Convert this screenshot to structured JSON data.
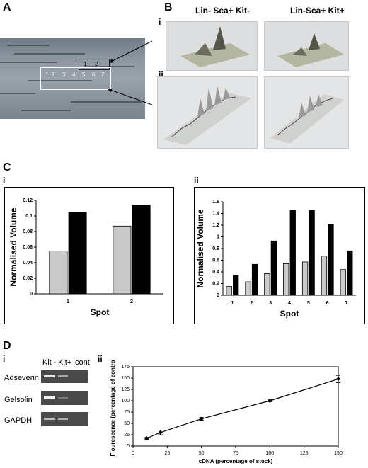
{
  "panels": {
    "A": {
      "letter": "A",
      "spots_small": [
        "1",
        "2"
      ],
      "spots_large": [
        "1",
        "2",
        "3",
        "4",
        "5",
        "6",
        "7"
      ]
    },
    "B": {
      "letter": "B",
      "sub_i": "i",
      "sub_ii": "ii",
      "col_left": "Lin- Sca+ Kit-",
      "col_right": "Lin-Sca+ Kit+"
    },
    "C": {
      "letter": "C",
      "sub_i": "i",
      "sub_ii": "ii"
    },
    "D": {
      "letter": "D",
      "sub_i": "i",
      "sub_ii": "ii",
      "gel_headers": [
        "Kit -",
        "Kit+",
        "cont"
      ],
      "genes": [
        "Adseverin",
        "Gelsolin",
        "GAPDH"
      ]
    }
  },
  "colors": {
    "kit_minus": "#c9c9c9",
    "kit_plus": "#000000"
  },
  "chart_data": [
    {
      "id": "Ci",
      "type": "bar",
      "categories": [
        "1",
        "2"
      ],
      "series": [
        {
          "values": [
            0.055,
            0.087
          ]
        },
        {
          "values": [
            0.105,
            0.114
          ]
        }
      ],
      "xlabel": "Spot",
      "ylabel": "Normalised Volume",
      "ylim": [
        0,
        0.12
      ],
      "yticks": [
        "0",
        "0.02",
        "0.04",
        "0.06",
        "0.08",
        "0.1",
        "0.12"
      ],
      "grid": false
    },
    {
      "id": "Cii",
      "type": "bar",
      "categories": [
        "1",
        "2",
        "3",
        "4",
        "5",
        "6",
        "7"
      ],
      "series": [
        {
          "values": [
            0.15,
            0.23,
            0.37,
            0.54,
            0.57,
            0.67,
            0.44
          ]
        },
        {
          "values": [
            0.34,
            0.53,
            0.93,
            1.45,
            1.45,
            1.21,
            0.76
          ]
        }
      ],
      "xlabel": "Spot",
      "ylabel": "Normalised Volume",
      "ylim": [
        0,
        1.6
      ],
      "yticks": [
        "0",
        "0.2",
        "0.4",
        "0.6",
        "0.8",
        "1",
        "1.2",
        "1.4",
        "1.6"
      ],
      "grid": false
    },
    {
      "id": "Dii",
      "type": "line",
      "x": [
        10,
        20,
        50,
        100,
        150
      ],
      "y": [
        17,
        30,
        60,
        100,
        148
      ],
      "yerr": [
        2,
        5,
        3,
        2,
        8
      ],
      "xlabel": "cDNA (percentage of stock)",
      "ylabel": "Flourescence (percentage of control)",
      "xlim": [
        0,
        150
      ],
      "ylim": [
        0,
        175
      ],
      "xticks": [
        "0",
        "25",
        "50",
        "75",
        "100",
        "125",
        "150"
      ],
      "yticks": [
        "0",
        "25",
        "50",
        "75",
        "100",
        "125",
        "150",
        "175"
      ],
      "grid": false
    }
  ]
}
